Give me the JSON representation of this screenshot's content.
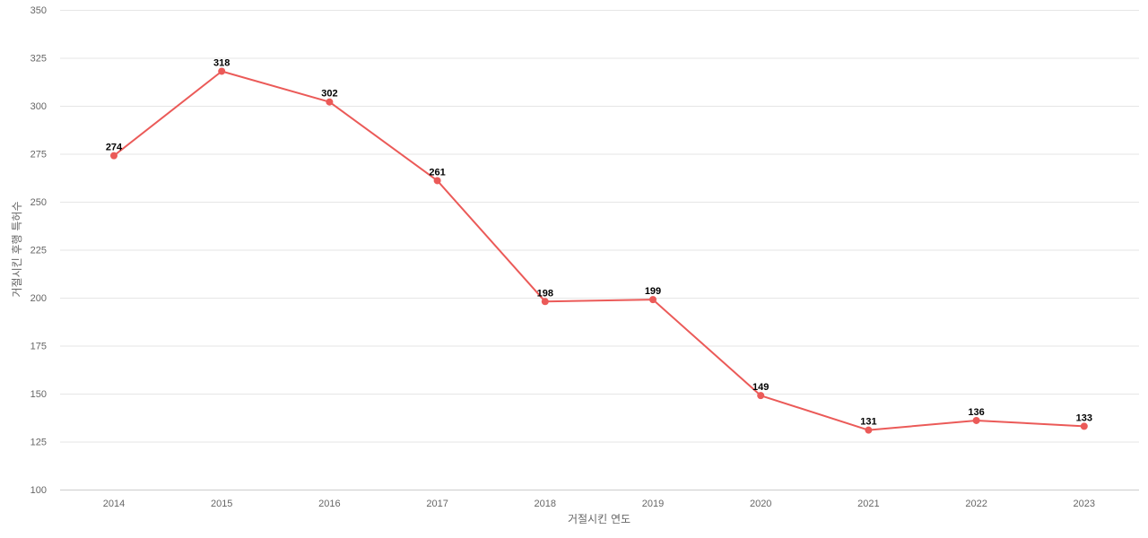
{
  "chart_data": {
    "type": "line",
    "title": "",
    "xlabel": "거절시킨 연도",
    "ylabel": "거절시킨 후행 특허수",
    "categories": [
      "2014",
      "2015",
      "2016",
      "2017",
      "2018",
      "2019",
      "2020",
      "2021",
      "2022",
      "2023"
    ],
    "series": [
      {
        "values": [
          274,
          318,
          302,
          261,
          198,
          199,
          149,
          131,
          136,
          133
        ],
        "color": "#eb5a58"
      }
    ],
    "ylim": [
      100,
      350
    ],
    "yticks": [
      100,
      125,
      150,
      175,
      200,
      225,
      250,
      275,
      300,
      325,
      350
    ],
    "grid": true,
    "show_data_labels": true
  }
}
